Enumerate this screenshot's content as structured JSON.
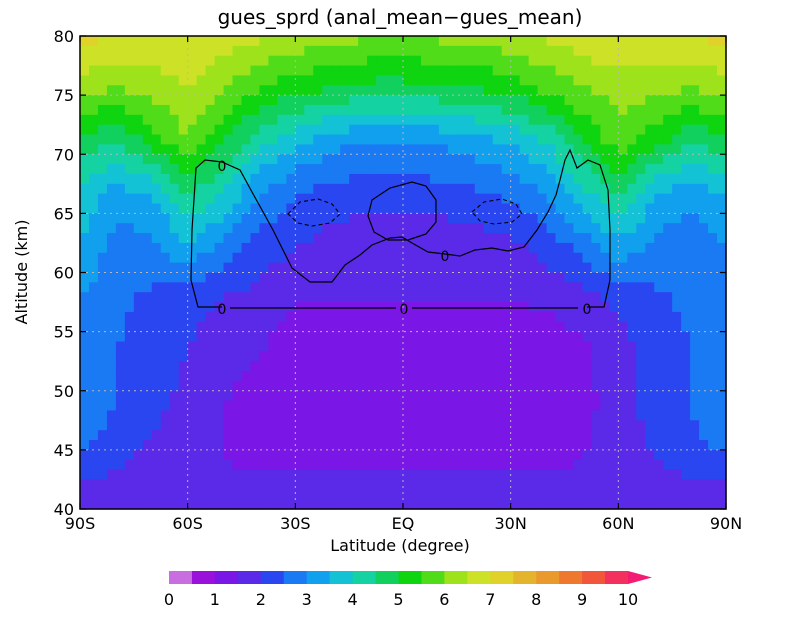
{
  "chart_data": {
    "type": "heatmap",
    "title": "gues_sprd (anal_mean−gues_mean)",
    "xlabel": "Latitude (degree)",
    "ylabel": "Altitude (km)",
    "xlim": [
      -90,
      90
    ],
    "ylim": [
      40,
      80
    ],
    "x_ticks": [
      {
        "value": -90,
        "label": "90S"
      },
      {
        "value": -60,
        "label": "60S"
      },
      {
        "value": -30,
        "label": "30S"
      },
      {
        "value": 0,
        "label": "EQ"
      },
      {
        "value": 30,
        "label": "30N"
      },
      {
        "value": 60,
        "label": "60N"
      },
      {
        "value": 90,
        "label": "90N"
      }
    ],
    "y_ticks": [
      {
        "value": 40,
        "label": "40"
      },
      {
        "value": 45,
        "label": "45"
      },
      {
        "value": 50,
        "label": "50"
      },
      {
        "value": 55,
        "label": "55"
      },
      {
        "value": 60,
        "label": "60"
      },
      {
        "value": 65,
        "label": "65"
      },
      {
        "value": 70,
        "label": "70"
      },
      {
        "value": 75,
        "label": "75"
      },
      {
        "value": 80,
        "label": "80"
      }
    ],
    "grid": true,
    "colorbar": {
      "min": 0,
      "max": 10,
      "step": 0.5,
      "tick_labels": [
        "0",
        "1",
        "2",
        "3",
        "4",
        "5",
        "6",
        "7",
        "8",
        "9",
        "10"
      ],
      "colors": [
        "#c86ee0",
        "#9a11dc",
        "#7a16e6",
        "#5a2ae8",
        "#2a46f0",
        "#1a7af4",
        "#10a0ee",
        "#14c2d6",
        "#14d2a2",
        "#12d05e",
        "#0fd410",
        "#50dc18",
        "#9ee21c",
        "#cde226",
        "#e0d22a",
        "#e4b42c",
        "#ea9a2c",
        "#ee782e",
        "#f2563a",
        "#f4305e",
        "#f21c72"
      ]
    },
    "contour_label": "0",
    "series": [
      {
        "values": [
          [
            1.5,
            1.5,
            1.6,
            1.6,
            1.7,
            1.7,
            1.7,
            1.8,
            1.8,
            1.8,
            1.8,
            1.8,
            1.8,
            1.7,
            1.7,
            1.7,
            1.6,
            1.6,
            1.5
          ],
          [
            2.5,
            2.2,
            1.8,
            1.8,
            1.5,
            1.4,
            1.4,
            1.4,
            1.4,
            1.4,
            1.4,
            1.4,
            1.4,
            1.4,
            1.5,
            1.7,
            2.0,
            2.3,
            2.5
          ],
          [
            3.0,
            2.5,
            2.2,
            1.8,
            1.5,
            1.3,
            1.3,
            1.4,
            1.5,
            1.5,
            1.5,
            1.4,
            1.2,
            1.1,
            1.3,
            1.8,
            2.2,
            2.5,
            3.0
          ],
          [
            2.5,
            2.5,
            2.3,
            2.0,
            1.7,
            1.5,
            1.3,
            1.3,
            1.3,
            1.2,
            1.3,
            1.3,
            1.2,
            1.2,
            1.4,
            1.8,
            2.2,
            2.5,
            2.5
          ],
          [
            3.0,
            2.6,
            2.4,
            2.2,
            2.0,
            1.8,
            1.5,
            1.5,
            1.5,
            1.5,
            1.5,
            1.5,
            1.5,
            1.6,
            1.8,
            2.1,
            2.4,
            2.6,
            3.0
          ],
          [
            3.5,
            2.8,
            2.8,
            3.5,
            2.8,
            2.3,
            2.0,
            1.8,
            1.6,
            1.6,
            1.6,
            1.7,
            1.9,
            2.2,
            2.7,
            3.4,
            2.8,
            2.6,
            3.0
          ],
          [
            3.8,
            3.3,
            3.5,
            4.5,
            4.0,
            3.0,
            2.5,
            2.3,
            2.2,
            2.2,
            2.3,
            2.4,
            2.6,
            3.0,
            3.8,
            4.5,
            3.6,
            3.2,
            3.6
          ],
          [
            4.8,
            4.5,
            5.2,
            6.0,
            5.0,
            4.2,
            3.6,
            3.2,
            3.0,
            3.0,
            3.1,
            3.3,
            3.6,
            4.0,
            5.0,
            5.8,
            5.2,
            4.6,
            4.8
          ],
          [
            6.2,
            6.0,
            6.2,
            6.5,
            6.0,
            5.5,
            5.2,
            5.0,
            4.8,
            4.8,
            4.9,
            5.0,
            5.2,
            5.6,
            6.0,
            6.2,
            6.2,
            6.0,
            6.2
          ],
          [
            7.2,
            7.0,
            7.0,
            7.0,
            6.8,
            6.6,
            6.4,
            6.2,
            6.1,
            6.0,
            6.1,
            6.2,
            6.4,
            6.6,
            6.8,
            7.0,
            7.0,
            7.0,
            7.2
          ]
        ]
      }
    ]
  }
}
